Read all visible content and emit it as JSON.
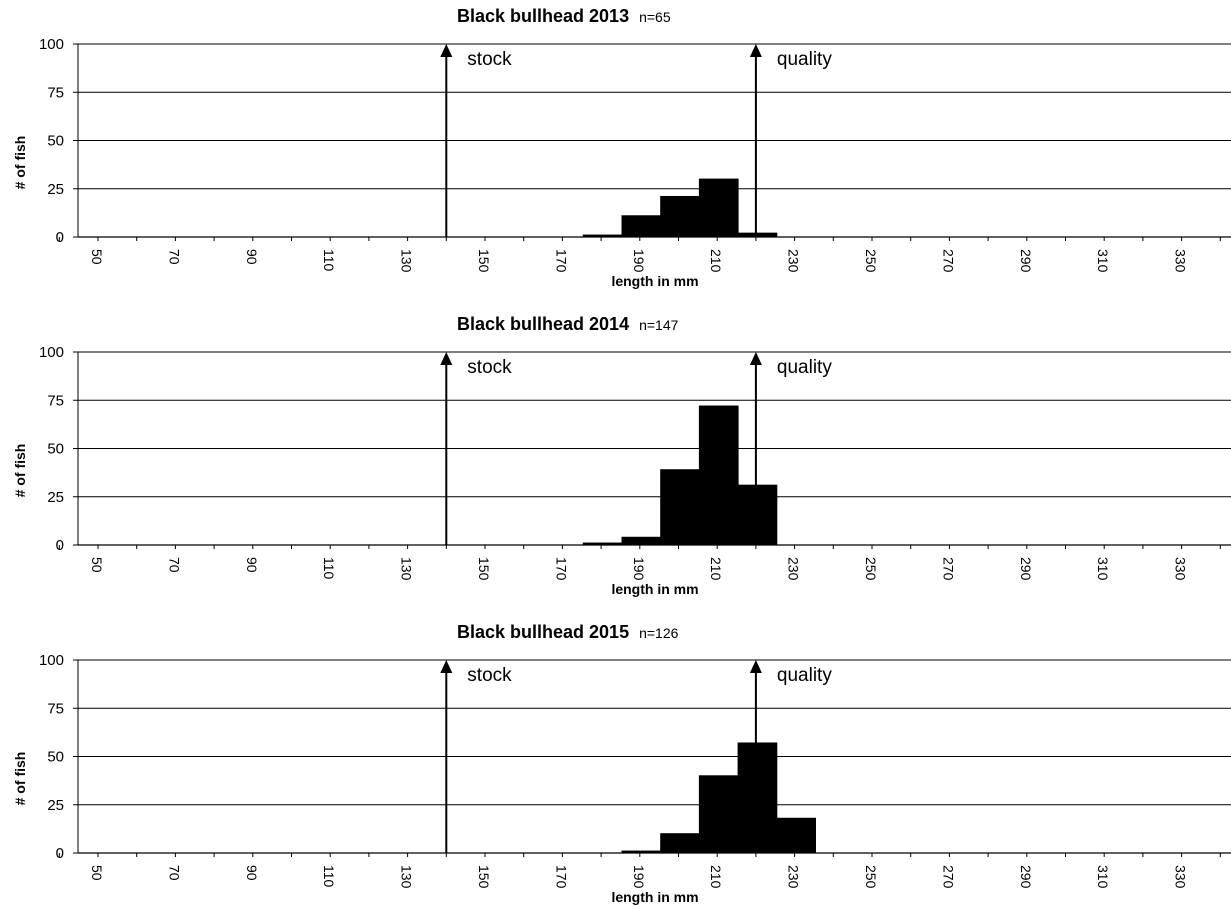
{
  "chart_data": [
    {
      "type": "bar",
      "title": "Black bullhead 2013",
      "subtitle": "n=65",
      "xlabel": "length in mm",
      "ylabel": "# of fish",
      "ylim": [
        0,
        100
      ],
      "yticks": [
        0,
        25,
        50,
        75,
        100
      ],
      "xticks": [
        50,
        70,
        90,
        110,
        130,
        150,
        170,
        190,
        210,
        230,
        250,
        270,
        290,
        310,
        330
      ],
      "bins": [
        {
          "x": 190,
          "value": 1
        },
        {
          "x": 200,
          "value": 11
        },
        {
          "x": 210,
          "value": 21
        },
        {
          "x": 220,
          "value": 30
        },
        {
          "x": 230,
          "value": 2
        }
      ],
      "markers": [
        {
          "label": "stock",
          "x": 145
        },
        {
          "label": "quality",
          "x": 225
        }
      ],
      "grid": true
    },
    {
      "type": "bar",
      "title": "Black bullhead 2014",
      "subtitle": "n=147",
      "xlabel": "length in mm",
      "ylabel": "# of fish",
      "ylim": [
        0,
        100
      ],
      "yticks": [
        0,
        25,
        50,
        75,
        100
      ],
      "xticks": [
        50,
        70,
        90,
        110,
        130,
        150,
        170,
        190,
        210,
        230,
        250,
        270,
        290,
        310,
        330
      ],
      "bins": [
        {
          "x": 190,
          "value": 1
        },
        {
          "x": 200,
          "value": 4
        },
        {
          "x": 210,
          "value": 39
        },
        {
          "x": 220,
          "value": 72
        },
        {
          "x": 230,
          "value": 31
        }
      ],
      "markers": [
        {
          "label": "stock",
          "x": 145
        },
        {
          "label": "quality",
          "x": 225
        }
      ],
      "grid": true
    },
    {
      "type": "bar",
      "title": "Black bullhead 2015",
      "subtitle": "n=126",
      "xlabel": "length in mm",
      "ylabel": "# of fish",
      "ylim": [
        0,
        100
      ],
      "yticks": [
        0,
        25,
        50,
        75,
        100
      ],
      "xticks": [
        50,
        70,
        90,
        110,
        130,
        150,
        170,
        190,
        210,
        230,
        250,
        270,
        290,
        310,
        330
      ],
      "bins": [
        {
          "x": 200,
          "value": 1
        },
        {
          "x": 210,
          "value": 10
        },
        {
          "x": 220,
          "value": 40
        },
        {
          "x": 230,
          "value": 57
        },
        {
          "x": 240,
          "value": 18
        }
      ],
      "markers": [
        {
          "label": "stock",
          "x": 145
        },
        {
          "label": "quality",
          "x": 225
        }
      ],
      "grid": true
    }
  ]
}
